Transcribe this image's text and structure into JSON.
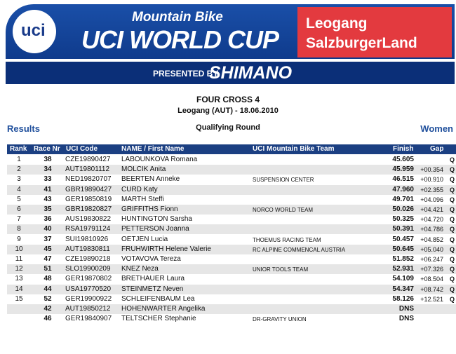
{
  "header": {
    "logo": "uci",
    "banner_top": "Mountain Bike",
    "banner_main": "UCI WORLD CUP",
    "venue_line1": "Leogang",
    "venue_line2": "SalzburgerLand",
    "presented_by": "PRESENTED BY",
    "sponsor": "SHIMANO"
  },
  "event": {
    "title": "FOUR CROSS 4",
    "subtitle": "Leogang (AUT) - 18.06.2010",
    "section": "Results",
    "round": "Qualifying Round",
    "category": "Women"
  },
  "table": {
    "columns": [
      "Rank",
      "Race Nr",
      "UCI Code",
      "NAME / First Name",
      "UCI Mountain Bike Team",
      "Finish",
      "Gap"
    ],
    "rows": [
      {
        "rank": 1,
        "nr": 38,
        "code": "CZE19890427",
        "name": "LABOUNKOVA Romana",
        "finish": "45.605",
        "q": "Q"
      },
      {
        "rank": 2,
        "nr": 34,
        "code": "AUT19801112",
        "name": "MOLCIK Anita",
        "finish": "45.959",
        "gap": "+00.354",
        "q": "Q"
      },
      {
        "rank": 3,
        "nr": 33,
        "code": "NED19820707",
        "name": "BEERTEN Anneke",
        "team": "SUSPENSION CENTER",
        "finish": "46.515",
        "gap": "+00.910",
        "q": "Q"
      },
      {
        "rank": 4,
        "nr": 41,
        "code": "GBR19890427",
        "name": "CURD Katy",
        "finish": "47.960",
        "gap": "+02.355",
        "q": "Q"
      },
      {
        "rank": 5,
        "nr": 43,
        "code": "GER19850819",
        "name": "MARTH Steffi",
        "finish": "49.701",
        "gap": "+04.096",
        "q": "Q"
      },
      {
        "rank": 6,
        "nr": 35,
        "code": "GBR19820827",
        "name": "GRIFFITHS Fionn",
        "team": "NORCO WORLD TEAM",
        "finish": "50.026",
        "gap": "+04.421",
        "q": "Q"
      },
      {
        "rank": 7,
        "nr": 36,
        "code": "AUS19830822",
        "name": "HUNTINGTON Sarsha",
        "finish": "50.325",
        "gap": "+04.720",
        "q": "Q"
      },
      {
        "rank": 8,
        "nr": 40,
        "code": "RSA19791124",
        "name": "PETTERSON Joanna",
        "finish": "50.391",
        "gap": "+04.786",
        "q": "Q"
      },
      {
        "rank": 9,
        "nr": 37,
        "code": "SUI19810926",
        "name": "OETJEN Lucia",
        "team": "THOEMUS RACING TEAM",
        "finish": "50.457",
        "gap": "+04.852",
        "q": "Q"
      },
      {
        "rank": 10,
        "nr": 45,
        "code": "AUT19830811",
        "name": "FRUHWIRTH Helene Valerie",
        "team": "RC ALPINE COMMENCAL AUSTRIA",
        "finish": "50.645",
        "gap": "+05.040",
        "q": "Q"
      },
      {
        "rank": 11,
        "nr": 47,
        "code": "CZE19890218",
        "name": "VOTAVOVA Tereza",
        "finish": "51.852",
        "gap": "+06.247",
        "q": "Q"
      },
      {
        "rank": 12,
        "nr": 51,
        "code": "SLO19900209",
        "name": "KNEZ Neza",
        "team": "UNIOR TOOLS TEAM",
        "finish": "52.931",
        "gap": "+07.326",
        "q": "Q"
      },
      {
        "rank": 13,
        "nr": 48,
        "code": "GER19870802",
        "name": "BRETHAUER Laura",
        "finish": "54.109",
        "gap": "+08.504",
        "q": "Q"
      },
      {
        "rank": 14,
        "nr": 44,
        "code": "USA19770520",
        "name": "STEINMETZ Neven",
        "finish": "54.347",
        "gap": "+08.742",
        "q": "Q"
      },
      {
        "rank": 15,
        "nr": 52,
        "code": "GER19900922",
        "name": "SCHLEIFENBAUM Lea",
        "finish": "58.126",
        "gap": "+12.521",
        "q": "Q"
      },
      {
        "nr": 42,
        "code": "AUT19850212",
        "name": "HOHENWARTER Angelika",
        "finish": "DNS"
      },
      {
        "nr": 46,
        "code": "GER19840907",
        "name": "TELTSCHER Stephanie",
        "team": "DR-GRAVITY UNION",
        "finish": "DNS"
      }
    ]
  }
}
